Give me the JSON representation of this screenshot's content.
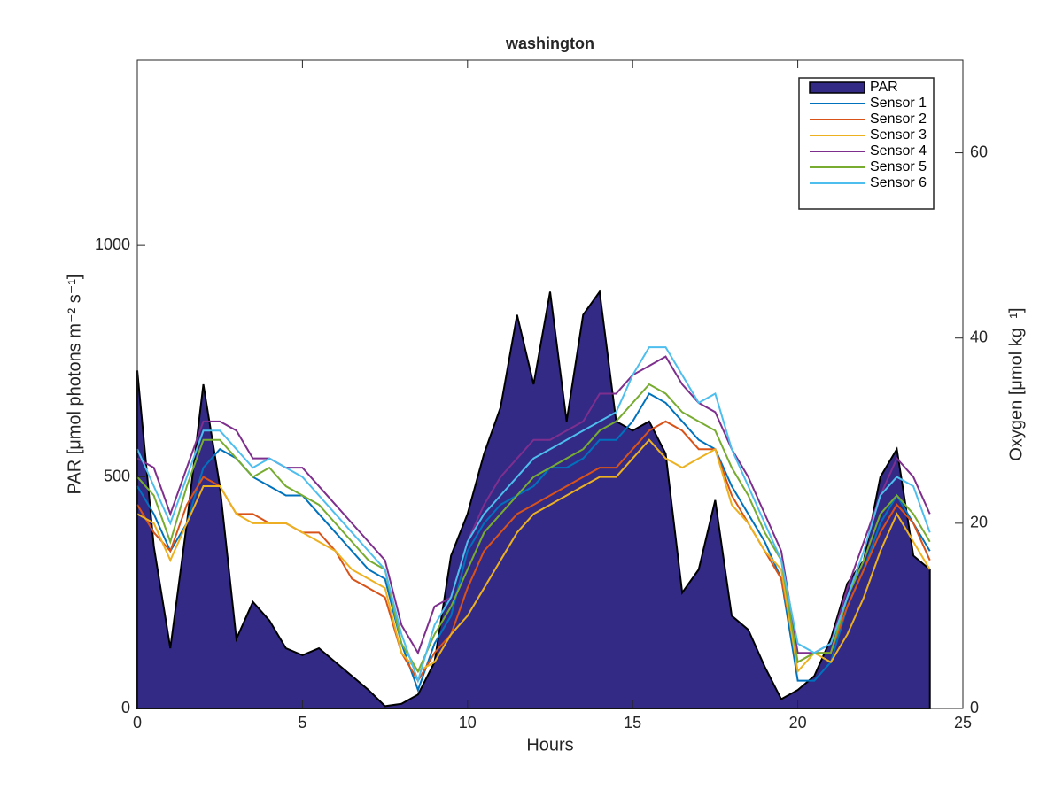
{
  "chart_data": {
    "type": "area-line",
    "title": "washington",
    "x_label": "Hours",
    "y_label": "PAR [μmol photons m⁻² s⁻¹]",
    "y2_label": "Oxygen [μmol kg⁻¹]",
    "xlim": [
      0,
      25
    ],
    "xticks": [
      0,
      5,
      10,
      15,
      20,
      25
    ],
    "ylim": [
      0,
      1400
    ],
    "yticks": [
      0,
      500,
      1000
    ],
    "y2lim": [
      0,
      70
    ],
    "y2ticks": [
      0,
      20,
      40,
      60
    ],
    "legend": "upper right",
    "x": [
      0,
      0.5,
      1,
      1.5,
      2,
      2.5,
      3,
      3.5,
      4,
      4.5,
      5,
      5.5,
      6,
      6.5,
      7,
      7.5,
      8,
      8.5,
      9,
      9.5,
      10,
      10.5,
      11,
      11.5,
      12,
      12.5,
      13,
      13.5,
      14,
      14.5,
      15,
      15.5,
      16,
      16.5,
      17,
      17.5,
      18,
      18.5,
      19,
      19.5,
      20,
      20.5,
      21,
      21.5,
      22,
      22.5,
      23,
      23.5,
      24
    ],
    "series": [
      {
        "name": "PAR",
        "color": "#332a86",
        "axis": "y",
        "values": [
          730,
          350,
          130,
          400,
          700,
          480,
          150,
          230,
          190,
          130,
          115,
          130,
          100,
          70,
          40,
          5,
          10,
          30,
          100,
          330,
          420,
          550,
          650,
          850,
          700,
          900,
          620,
          850,
          900,
          620,
          600,
          620,
          550,
          250,
          300,
          450,
          200,
          170,
          90,
          20,
          40,
          70,
          150,
          270,
          320,
          500,
          560,
          330,
          300
        ]
      },
      {
        "name": "Sensor 1",
        "color": "#0072bd",
        "axis": "y2",
        "values": [
          24,
          21,
          17,
          20,
          26,
          28,
          27,
          25,
          24,
          23,
          23,
          21,
          19,
          17,
          15,
          14,
          7,
          2,
          7,
          10,
          17,
          20,
          22,
          23,
          24,
          26,
          26,
          27,
          29,
          29,
          31,
          34,
          33,
          31,
          29,
          28,
          24,
          21,
          18,
          14,
          3,
          3,
          5,
          11,
          15,
          20,
          23,
          20,
          17
        ]
      },
      {
        "name": "Sensor 2",
        "color": "#d95319",
        "axis": "y2",
        "values": [
          22,
          19,
          17,
          22,
          25,
          24,
          21,
          21,
          20,
          20,
          19,
          19,
          17,
          14,
          13,
          12,
          6,
          3,
          6,
          8,
          13,
          17,
          19,
          21,
          22,
          23,
          24,
          25,
          26,
          26,
          28,
          30,
          31,
          30,
          28,
          28,
          23,
          20,
          17,
          14,
          5,
          6,
          6,
          11,
          15,
          19,
          22,
          20,
          16
        ]
      },
      {
        "name": "Sensor 3",
        "color": "#edb120",
        "axis": "y2",
        "values": [
          21,
          20,
          16,
          20,
          24,
          24,
          21,
          20,
          20,
          20,
          19,
          18,
          17,
          15,
          14,
          13,
          6,
          4,
          5,
          8,
          10,
          13,
          16,
          19,
          21,
          22,
          23,
          24,
          25,
          25,
          27,
          29,
          27,
          26,
          27,
          28,
          22,
          20,
          17,
          15,
          4,
          6,
          5,
          8,
          12,
          17,
          21,
          18,
          15
        ]
      },
      {
        "name": "Sensor 4",
        "color": "#7e2f8e",
        "axis": "y2",
        "values": [
          27,
          26,
          21,
          26,
          31,
          31,
          30,
          27,
          27,
          26,
          26,
          24,
          22,
          20,
          18,
          16,
          9,
          6,
          11,
          12,
          18,
          22,
          25,
          27,
          29,
          29,
          30,
          31,
          34,
          34,
          36,
          37,
          38,
          35,
          33,
          32,
          28,
          25,
          21,
          17,
          6,
          6,
          7,
          13,
          18,
          23,
          27,
          25,
          21
        ]
      },
      {
        "name": "Sensor 5",
        "color": "#77ac30",
        "axis": "y2",
        "values": [
          25,
          23,
          18,
          24,
          29,
          29,
          27,
          25,
          26,
          24,
          23,
          22,
          20,
          18,
          16,
          15,
          7,
          4,
          8,
          11,
          15,
          19,
          21,
          23,
          25,
          26,
          27,
          28,
          30,
          31,
          33,
          35,
          34,
          32,
          31,
          30,
          26,
          23,
          19,
          16,
          5,
          6,
          6,
          12,
          16,
          21,
          23,
          21,
          18
        ]
      },
      {
        "name": "Sensor 6",
        "color": "#4dbeee",
        "axis": "y2",
        "values": [
          28,
          24,
          20,
          25,
          30,
          30,
          28,
          26,
          27,
          26,
          25,
          23,
          21,
          19,
          17,
          15,
          8,
          3,
          9,
          12,
          18,
          21,
          23,
          25,
          27,
          28,
          29,
          30,
          31,
          32,
          36,
          39,
          39,
          36,
          33,
          34,
          28,
          24,
          20,
          16,
          7,
          6,
          7,
          12,
          17,
          23,
          25,
          24,
          19
        ]
      }
    ]
  }
}
